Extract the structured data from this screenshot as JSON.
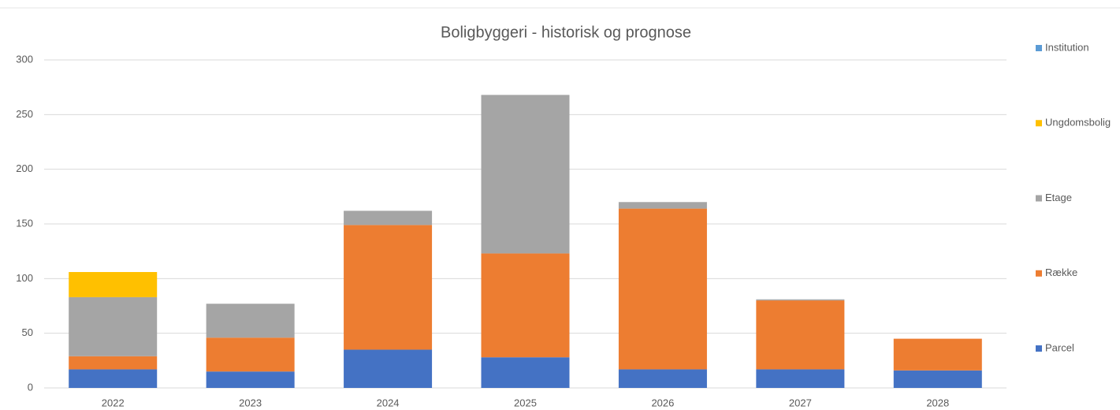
{
  "chart_data": {
    "type": "stacked_bar",
    "title": "Boligbyggeri - historisk og prognose",
    "categories": [
      "2022",
      "2023",
      "2024",
      "2025",
      "2026",
      "2027",
      "2028"
    ],
    "series": [
      {
        "name": "Parcel",
        "color": "#4472c4",
        "values": [
          17,
          15,
          35,
          28,
          17,
          17,
          16
        ]
      },
      {
        "name": "Række",
        "color": "#ed7d31",
        "values": [
          12,
          31,
          114,
          95,
          147,
          63,
          29
        ]
      },
      {
        "name": "Etage",
        "color": "#a5a5a5",
        "values": [
          54,
          31,
          13,
          145,
          6,
          1,
          0
        ]
      },
      {
        "name": "Ungdomsbolig",
        "color": "#ffc000",
        "values": [
          23,
          0,
          0,
          0,
          0,
          0,
          0
        ]
      },
      {
        "name": "Institution",
        "color": "#5b9bd5",
        "values": [
          0,
          0,
          0,
          0,
          0,
          0,
          0
        ]
      }
    ],
    "ylim": [
      0,
      300
    ],
    "yticks": [
      0,
      50,
      100,
      150,
      200,
      250,
      300
    ],
    "grid": true,
    "legend": "right"
  }
}
